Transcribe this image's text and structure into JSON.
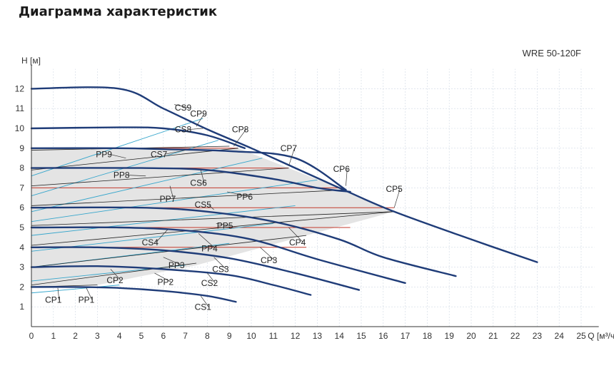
{
  "page": {
    "title": "Диаграмма характеристик"
  },
  "colors": {
    "curve": "#1f3c78",
    "thin_line": "#222222",
    "red_line": "#c23a2c",
    "cyan_line": "#36a6cc",
    "shade": "#e4e4e4",
    "grid": "#cfd8e3",
    "axis": "#333333"
  },
  "chart_data": {
    "type": "line",
    "title": "",
    "model": "WRE 50-120F",
    "xlabel": "Q [м³/ч]",
    "ylabel": "H [м]",
    "xlim": [
      0,
      26
    ],
    "ylim": [
      0,
      13
    ],
    "x_ticks": [
      "0",
      "1",
      "2",
      "3",
      "4",
      "5",
      "6",
      "7",
      "8",
      "9",
      "10",
      "11",
      "12",
      "13",
      "14",
      "15",
      "16",
      "17",
      "18",
      "19",
      "20",
      "21",
      "22",
      "23",
      "24",
      "25"
    ],
    "y_ticks": [
      "1",
      "2",
      "3",
      "4",
      "5",
      "6",
      "7",
      "8",
      "9",
      "10",
      "11",
      "12"
    ],
    "grid": true,
    "shaded_region": [
      [
        0,
        2
      ],
      [
        0,
        4
      ],
      [
        0,
        5
      ],
      [
        0,
        6
      ],
      [
        0,
        7
      ],
      [
        0,
        8
      ],
      [
        0,
        9
      ],
      [
        9.4,
        9
      ],
      [
        11.7,
        8
      ],
      [
        14.2,
        6.9
      ],
      [
        16.5,
        5.8
      ],
      [
        12.5,
        4.6
      ],
      [
        7.5,
        3.1
      ],
      [
        3,
        2.1
      ]
    ],
    "cs_curves": [
      {
        "name": "CS1",
        "points": [
          [
            0,
            2
          ],
          [
            2,
            2
          ],
          [
            4,
            1.95
          ],
          [
            6,
            1.8
          ],
          [
            8,
            1.55
          ],
          [
            9.3,
            1.25
          ]
        ]
      },
      {
        "name": "CS2",
        "points": [
          [
            0,
            3
          ],
          [
            3,
            3.05
          ],
          [
            6,
            2.9
          ],
          [
            9,
            2.6
          ],
          [
            11,
            2.1
          ],
          [
            12.7,
            1.6
          ]
        ]
      },
      {
        "name": "CS3",
        "points": [
          [
            0,
            4
          ],
          [
            3,
            4
          ],
          [
            6,
            3.85
          ],
          [
            9,
            3.45
          ],
          [
            12,
            2.7
          ],
          [
            14.9,
            1.85
          ]
        ]
      },
      {
        "name": "CS4",
        "points": [
          [
            0,
            5
          ],
          [
            4,
            5
          ],
          [
            7,
            4.85
          ],
          [
            10,
            4.4
          ],
          [
            13,
            3.4
          ],
          [
            17,
            2.2
          ]
        ]
      },
      {
        "name": "CS5",
        "points": [
          [
            0,
            6
          ],
          [
            5,
            6
          ],
          [
            8,
            5.8
          ],
          [
            11,
            5.3
          ],
          [
            14,
            4.4
          ],
          [
            16,
            3.5
          ],
          [
            19.3,
            2.55
          ]
        ]
      },
      {
        "name": "CS6",
        "points": [
          [
            0,
            8
          ],
          [
            5,
            8
          ],
          [
            8,
            7.9
          ],
          [
            11,
            7.45
          ],
          [
            13,
            7.0
          ],
          [
            14.5,
            6.8
          ]
        ]
      },
      {
        "name": "CS7",
        "points": [
          [
            0,
            9
          ],
          [
            4,
            9
          ],
          [
            6,
            8.95
          ],
          [
            9,
            8.85
          ],
          [
            12,
            8.5
          ],
          [
            14.3,
            6.9
          ]
        ]
      },
      {
        "name": "CS8",
        "points": [
          [
            0,
            10
          ],
          [
            4,
            10.05
          ],
          [
            6,
            10.0
          ],
          [
            8,
            9.65
          ],
          [
            9.7,
            9.0
          ]
        ]
      },
      {
        "name": "CS9",
        "points": [
          [
            0,
            12
          ],
          [
            4,
            12
          ],
          [
            6,
            11.0
          ],
          [
            8,
            9.95
          ],
          [
            10,
            9.0
          ],
          [
            12,
            8.0
          ],
          [
            14.3,
            6.85
          ],
          [
            16.5,
            5.8
          ],
          [
            20,
            4.4
          ],
          [
            23,
            3.25
          ]
        ]
      }
    ],
    "cp_lines": [
      {
        "name": "CP1",
        "points": [
          [
            0,
            2
          ],
          [
            3,
            2.1
          ]
        ]
      },
      {
        "name": "CP2",
        "points": [
          [
            0,
            2.1
          ],
          [
            7.5,
            3.2
          ]
        ]
      },
      {
        "name": "CP3",
        "points": [
          [
            0,
            3.0
          ],
          [
            12.5,
            4.6
          ]
        ]
      },
      {
        "name": "CP4",
        "points": [
          [
            0,
            4.1
          ],
          [
            16.5,
            5.8
          ]
        ]
      },
      {
        "name": "CP5",
        "points": [
          [
            0,
            5.1
          ],
          [
            16.5,
            5.8
          ]
        ]
      },
      {
        "name": "CP6",
        "points": [
          [
            0,
            6.1
          ],
          [
            14.3,
            6.9
          ]
        ]
      },
      {
        "name": "CP7",
        "points": [
          [
            0,
            7.1
          ],
          [
            11.7,
            8.0
          ]
        ]
      },
      {
        "name": "CP8",
        "points": [
          [
            0,
            7.9
          ],
          [
            9.4,
            9.0
          ]
        ]
      },
      {
        "name": "CP9",
        "points": [
          [
            0,
            8.9
          ],
          [
            9.0,
            9.1
          ]
        ]
      }
    ],
    "pp_lines": [
      {
        "name": "PP1",
        "points": [
          [
            0,
            1.7
          ],
          [
            4,
            2.1
          ]
        ]
      },
      {
        "name": "PP2",
        "points": [
          [
            0,
            2.3
          ],
          [
            7,
            3.1
          ]
        ]
      },
      {
        "name": "PP3",
        "points": [
          [
            0,
            3.0
          ],
          [
            9,
            4.2
          ]
        ]
      },
      {
        "name": "PP4",
        "points": [
          [
            0,
            3.8
          ],
          [
            11,
            5.2
          ]
        ]
      },
      {
        "name": "PP5",
        "points": [
          [
            0,
            4.6
          ],
          [
            12,
            6.1
          ]
        ]
      },
      {
        "name": "PP6",
        "points": [
          [
            0,
            5.3
          ],
          [
            13,
            7.4
          ]
        ]
      },
      {
        "name": "PP7",
        "points": [
          [
            0,
            5.8
          ],
          [
            10.5,
            8.5
          ]
        ]
      },
      {
        "name": "PP8",
        "points": [
          [
            0,
            6.6
          ],
          [
            8.5,
            9.4
          ]
        ]
      },
      {
        "name": "PP9",
        "points": [
          [
            0,
            7.6
          ],
          [
            7.8,
            10.5
          ]
        ]
      }
    ],
    "red_lines": [
      {
        "y": 9,
        "x_end": 9.4
      },
      {
        "y": 8,
        "x_end": 11.7
      },
      {
        "y": 7,
        "x_end": 14.2
      },
      {
        "y": 6,
        "x_end": 16.5
      },
      {
        "y": 5,
        "x_end": 14.5
      },
      {
        "y": 4,
        "x_end": 12.5
      }
    ],
    "labels": [
      {
        "text": "CS9",
        "x": 6.9,
        "y": 10.9,
        "line_to": [
          6.5,
          11.2
        ]
      },
      {
        "text": "CP9",
        "x": 7.6,
        "y": 10.6,
        "line_to": [
          7.5,
          10.1
        ]
      },
      {
        "text": "CS8",
        "x": 6.9,
        "y": 9.8,
        "line_to": [
          7.8,
          10.0
        ]
      },
      {
        "text": "CP8",
        "x": 9.5,
        "y": 9.8,
        "line_to": [
          9.2,
          9.1
        ]
      },
      {
        "text": "CP7",
        "x": 11.7,
        "y": 8.85,
        "line_to": [
          11.7,
          8.1
        ]
      },
      {
        "text": "PP9",
        "x": 3.3,
        "y": 8.55,
        "line_to": [
          4.3,
          8.5
        ]
      },
      {
        "text": "CS7",
        "x": 5.8,
        "y": 8.55,
        "line_to": [
          7.0,
          8.9
        ]
      },
      {
        "text": "PP8",
        "x": 4.1,
        "y": 7.5,
        "line_to": [
          5.2,
          7.6
        ]
      },
      {
        "text": "CP6",
        "x": 14.1,
        "y": 7.8,
        "line_to": [
          14.3,
          7.1
        ]
      },
      {
        "text": "CS6",
        "x": 7.6,
        "y": 7.1,
        "line_to": [
          7.7,
          7.9
        ]
      },
      {
        "text": "CP5",
        "x": 16.5,
        "y": 6.8,
        "line_to": [
          16.5,
          6.0
        ]
      },
      {
        "text": "PP7",
        "x": 6.2,
        "y": 6.3,
        "line_to": [
          6.3,
          7.1
        ]
      },
      {
        "text": "PP6",
        "x": 9.7,
        "y": 6.4,
        "line_to": [
          8.9,
          6.8
        ]
      },
      {
        "text": "CS5",
        "x": 7.8,
        "y": 6.0,
        "line_to": [
          8.3,
          5.9
        ]
      },
      {
        "text": "PP5",
        "x": 8.8,
        "y": 4.95,
        "line_to": [
          8.4,
          5.2
        ]
      },
      {
        "text": "CS4",
        "x": 5.4,
        "y": 4.1,
        "line_to": [
          6.2,
          4.9
        ]
      },
      {
        "text": "CP4",
        "x": 12.1,
        "y": 4.1,
        "line_to": [
          11.7,
          5.0
        ]
      },
      {
        "text": "PP4",
        "x": 8.1,
        "y": 3.8,
        "line_to": [
          7.6,
          4.7
        ]
      },
      {
        "text": "CP3",
        "x": 10.8,
        "y": 3.2,
        "line_to": [
          10.4,
          4.0
        ]
      },
      {
        "text": "PP3",
        "x": 6.6,
        "y": 2.95,
        "line_to": [
          6.0,
          3.5
        ]
      },
      {
        "text": "CS3",
        "x": 8.6,
        "y": 2.75,
        "line_to": [
          8.3,
          3.5
        ]
      },
      {
        "text": "CP2",
        "x": 3.8,
        "y": 2.2,
        "line_to": [
          3.6,
          2.9
        ]
      },
      {
        "text": "PP2",
        "x": 6.1,
        "y": 2.1,
        "line_to": [
          5.6,
          2.7
        ]
      },
      {
        "text": "CS2",
        "x": 8.1,
        "y": 2.05,
        "line_to": [
          8.0,
          2.7
        ]
      },
      {
        "text": "CP1",
        "x": 1.0,
        "y": 1.2,
        "line_to": [
          1.2,
          1.95
        ]
      },
      {
        "text": "PP1",
        "x": 2.5,
        "y": 1.2,
        "line_to": [
          2.5,
          1.95
        ]
      },
      {
        "text": "CS1",
        "x": 7.8,
        "y": 0.85,
        "line_to": [
          7.7,
          1.55
        ]
      }
    ]
  }
}
